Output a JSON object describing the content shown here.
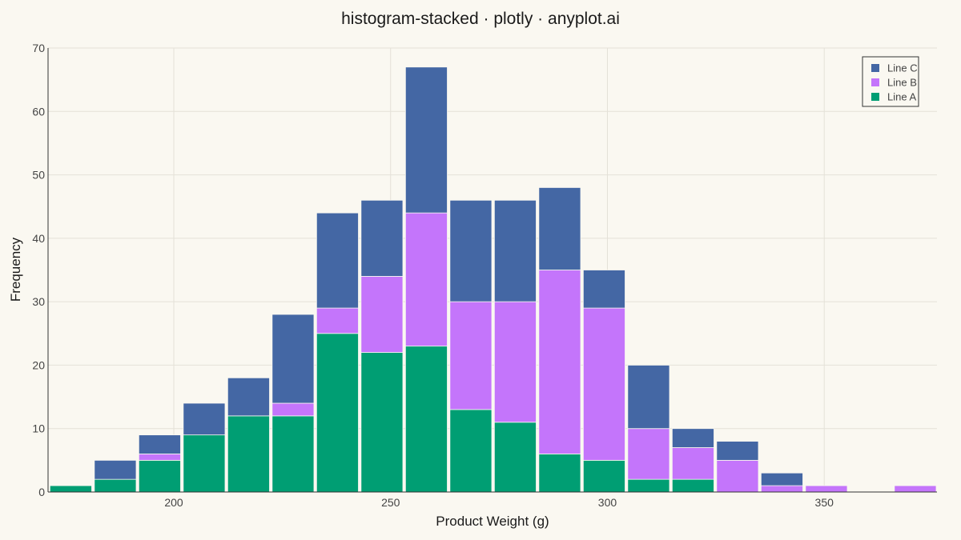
{
  "chart_data": {
    "type": "bar",
    "stacked": true,
    "title": "histogram-stacked · plotly · anyplot.ai",
    "xlabel": "Product Weight (g)",
    "ylabel": "Frequency",
    "xlim": [
      171,
      376
    ],
    "ylim": [
      0,
      70
    ],
    "xticks": [
      200,
      250,
      300,
      350
    ],
    "yticks": [
      0,
      10,
      20,
      30,
      40,
      50,
      60,
      70
    ],
    "grid": true,
    "legend_position": "top-right",
    "bin_width": 10,
    "bin_starts": [
      171.25,
      181.5,
      191.75,
      202,
      212.25,
      222.5,
      232.75,
      243,
      253.25,
      263.5,
      273.75,
      284,
      294.25,
      304.5,
      314.75,
      325,
      335.25,
      345.5,
      355.75,
      366
    ],
    "series": [
      {
        "name": "Line A",
        "color": "#009E73",
        "values": [
          1,
          2,
          5,
          9,
          12,
          12,
          25,
          22,
          23,
          13,
          11,
          6,
          5,
          2,
          2,
          0,
          0,
          0,
          0,
          0
        ]
      },
      {
        "name": "Line B",
        "color": "#C475FB",
        "values": [
          0,
          0,
          1,
          0,
          0,
          2,
          4,
          12,
          21,
          17,
          19,
          29,
          24,
          8,
          5,
          5,
          1,
          1,
          0,
          1
        ]
      },
      {
        "name": "Line C",
        "color": "#4467A4",
        "values": [
          0,
          3,
          3,
          5,
          6,
          14,
          15,
          12,
          23,
          16,
          16,
          13,
          6,
          10,
          3,
          3,
          2,
          0,
          0,
          0
        ]
      }
    ]
  }
}
